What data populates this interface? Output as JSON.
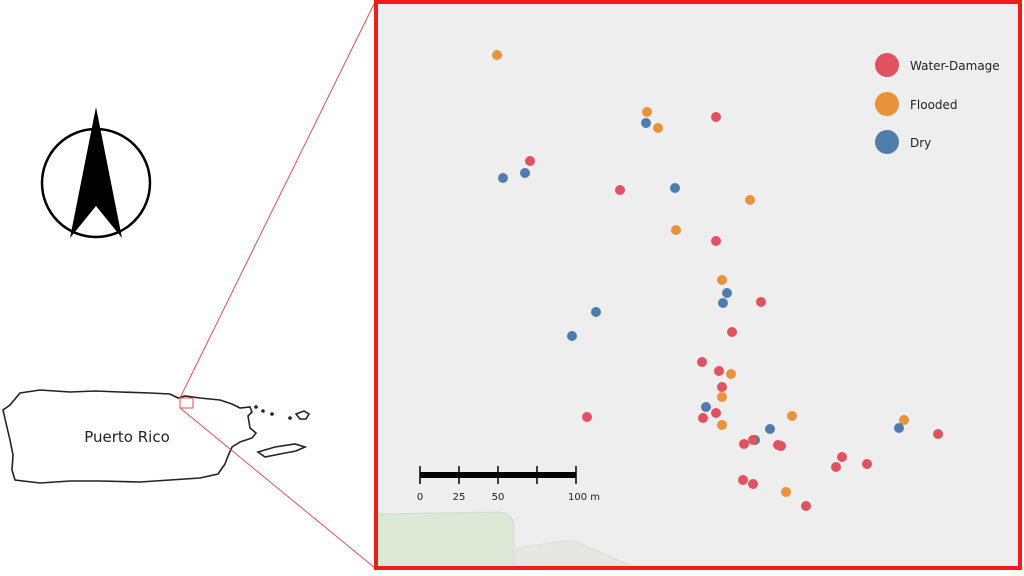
{
  "inset": {
    "label": "Puerto Rico"
  },
  "legend": {
    "items": [
      {
        "label": "Water-Damage",
        "color": "#e05260"
      },
      {
        "label": "Flooded",
        "color": "#e8923a"
      },
      {
        "label": "Dry",
        "color": "#4f7cac"
      }
    ]
  },
  "scale_bar": {
    "ticks": [
      "0",
      "25",
      "50",
      "",
      "100 m"
    ]
  },
  "frame_color": "#f01c1c",
  "map_background": "#eeeeee",
  "north_arrow_icon": "north-arrow-icon"
}
